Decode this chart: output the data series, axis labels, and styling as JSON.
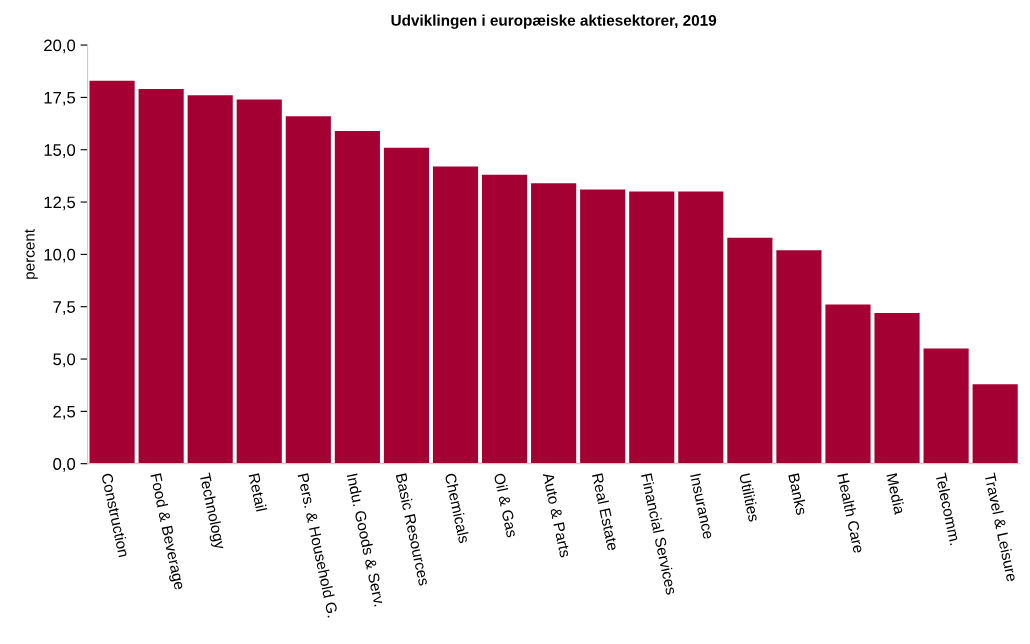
{
  "chart_data": {
    "type": "bar",
    "title": "Udviklingen i europæiske aktiesektorer, 2019",
    "ylabel": "percent",
    "categories": [
      "Construction",
      "Food & Beverage",
      "Technology",
      "Retail",
      "Pers. & Household G.",
      "Indu. Goods & Serv.",
      "Basic Resources",
      "Chemicals",
      "Oil & Gas",
      "Auto & Parts",
      "Real Estate",
      "Financial Services",
      "Insurance",
      "Utilities",
      "Banks",
      "Health Care",
      "Media",
      "Telecomm.",
      "Travel & Leisure"
    ],
    "values": [
      18.3,
      17.9,
      17.6,
      17.4,
      16.6,
      15.9,
      15.1,
      14.2,
      13.8,
      13.4,
      13.1,
      13.0,
      13.0,
      10.8,
      10.2,
      7.6,
      7.2,
      5.5,
      3.8
    ],
    "color": "#a50034",
    "ylim": [
      0,
      20
    ],
    "yticks": [
      {
        "value": 0,
        "label": "0,0"
      },
      {
        "value": 2.5,
        "label": "2,5"
      },
      {
        "value": 5,
        "label": "5,0"
      },
      {
        "value": 7.5,
        "label": "7,5"
      },
      {
        "value": 10,
        "label": "10,0"
      },
      {
        "value": 12.5,
        "label": "12,5"
      },
      {
        "value": 15,
        "label": "15,0"
      },
      {
        "value": 17.5,
        "label": "17,5"
      },
      {
        "value": 20,
        "label": "20,0"
      }
    ],
    "grid": false,
    "legend": false
  }
}
